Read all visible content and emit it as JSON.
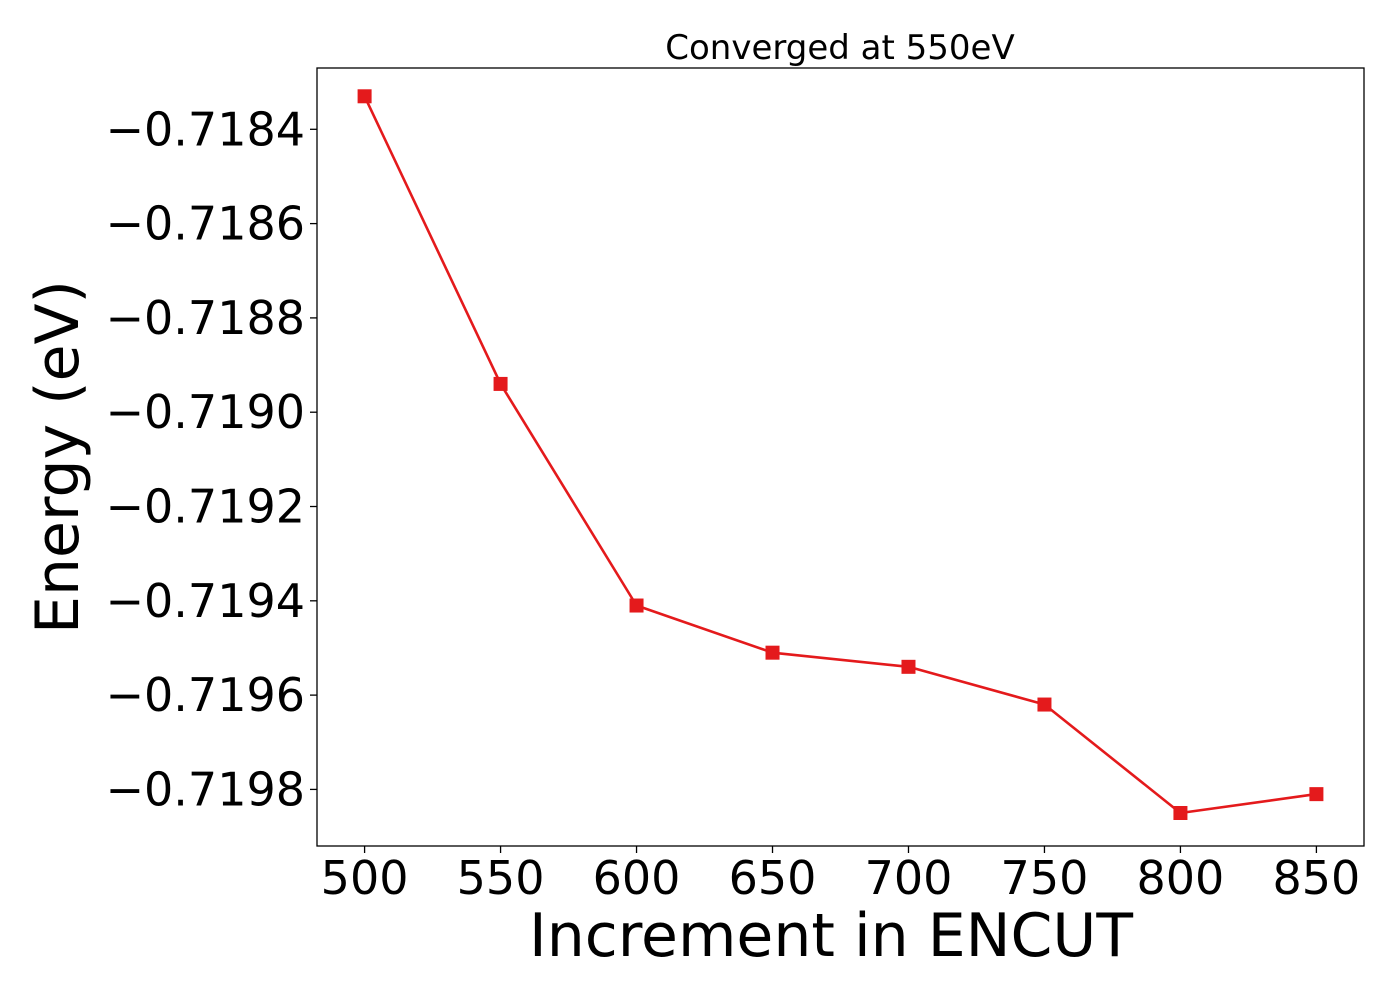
{
  "chart_data": {
    "type": "line",
    "title": "Converged at 550eV",
    "xlabel": "Increment in ENCUT",
    "ylabel": "Energy (eV)",
    "x": [
      500,
      550,
      600,
      650,
      700,
      750,
      800,
      850
    ],
    "x_ticks": [
      "500",
      "550",
      "600",
      "650",
      "700",
      "750",
      "800",
      "850"
    ],
    "y_ticks": [
      "−0.7184",
      "−0.7186",
      "−0.7188",
      "−0.7190",
      "−0.7192",
      "−0.7194",
      "−0.7196",
      "−0.7198"
    ],
    "y_tick_values": [
      -0.7184,
      -0.7186,
      -0.7188,
      -0.719,
      -0.7192,
      -0.7194,
      -0.7196,
      -0.7198
    ],
    "xlim": [
      482.5,
      867.5
    ],
    "ylim": [
      -0.71992,
      -0.71827
    ],
    "grid": false,
    "series": [
      {
        "values": [
          -0.71833,
          -0.71894,
          -0.71941,
          -0.71951,
          -0.71954,
          -0.71962,
          -0.71985,
          -0.71981
        ],
        "color": "#e41a1c",
        "marker": "square"
      }
    ]
  }
}
